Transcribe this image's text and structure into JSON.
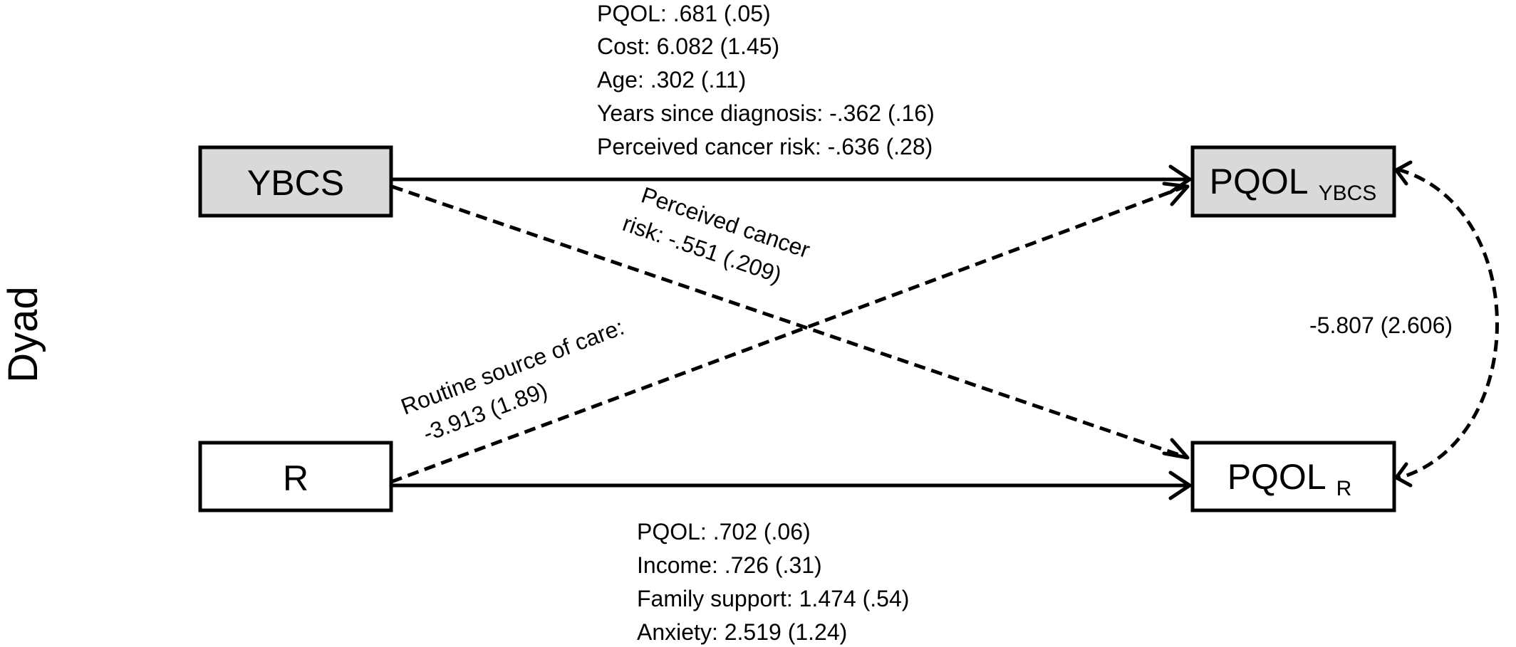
{
  "side_label": "Dyad",
  "colors": {
    "ybcs_fill": "#d9d9d9",
    "r_fill": "#ffffff",
    "line": "#000000"
  },
  "nodes": {
    "ybcs": {
      "label": "YBCS"
    },
    "r": {
      "label": "R"
    },
    "pqol_ybcs": {
      "label": "PQOL",
      "subscript": "YBCS"
    },
    "pqol_r": {
      "label": "PQOL",
      "subscript": "R"
    }
  },
  "paths": {
    "ybcs_to_pqol_ybcs": {
      "style": "solid",
      "lines": [
        "PQOL: .681 (.05)",
        "Cost: 6.082 (1.45)",
        "Age: .302 (.11)",
        "Years since diagnosis: -.362 (.16)",
        "Perceived cancer risk: -.636 (.28)"
      ]
    },
    "r_to_pqol_r": {
      "style": "solid",
      "lines": [
        "PQOL: .702 (.06)",
        "Income: .726 (.31)",
        "Family support: 1.474 (.54)",
        "Anxiety: 2.519 (1.24)"
      ]
    },
    "ybcs_to_pqol_r": {
      "style": "dashed",
      "lines": [
        "Perceived cancer",
        "risk: -.551 (.209)"
      ]
    },
    "r_to_pqol_ybcs": {
      "style": "dashed",
      "lines": [
        "Routine source of care:",
        "-3.913 (1.89)"
      ]
    },
    "covariance": {
      "style": "dashed",
      "label": "-5.807 (2.606)"
    }
  }
}
